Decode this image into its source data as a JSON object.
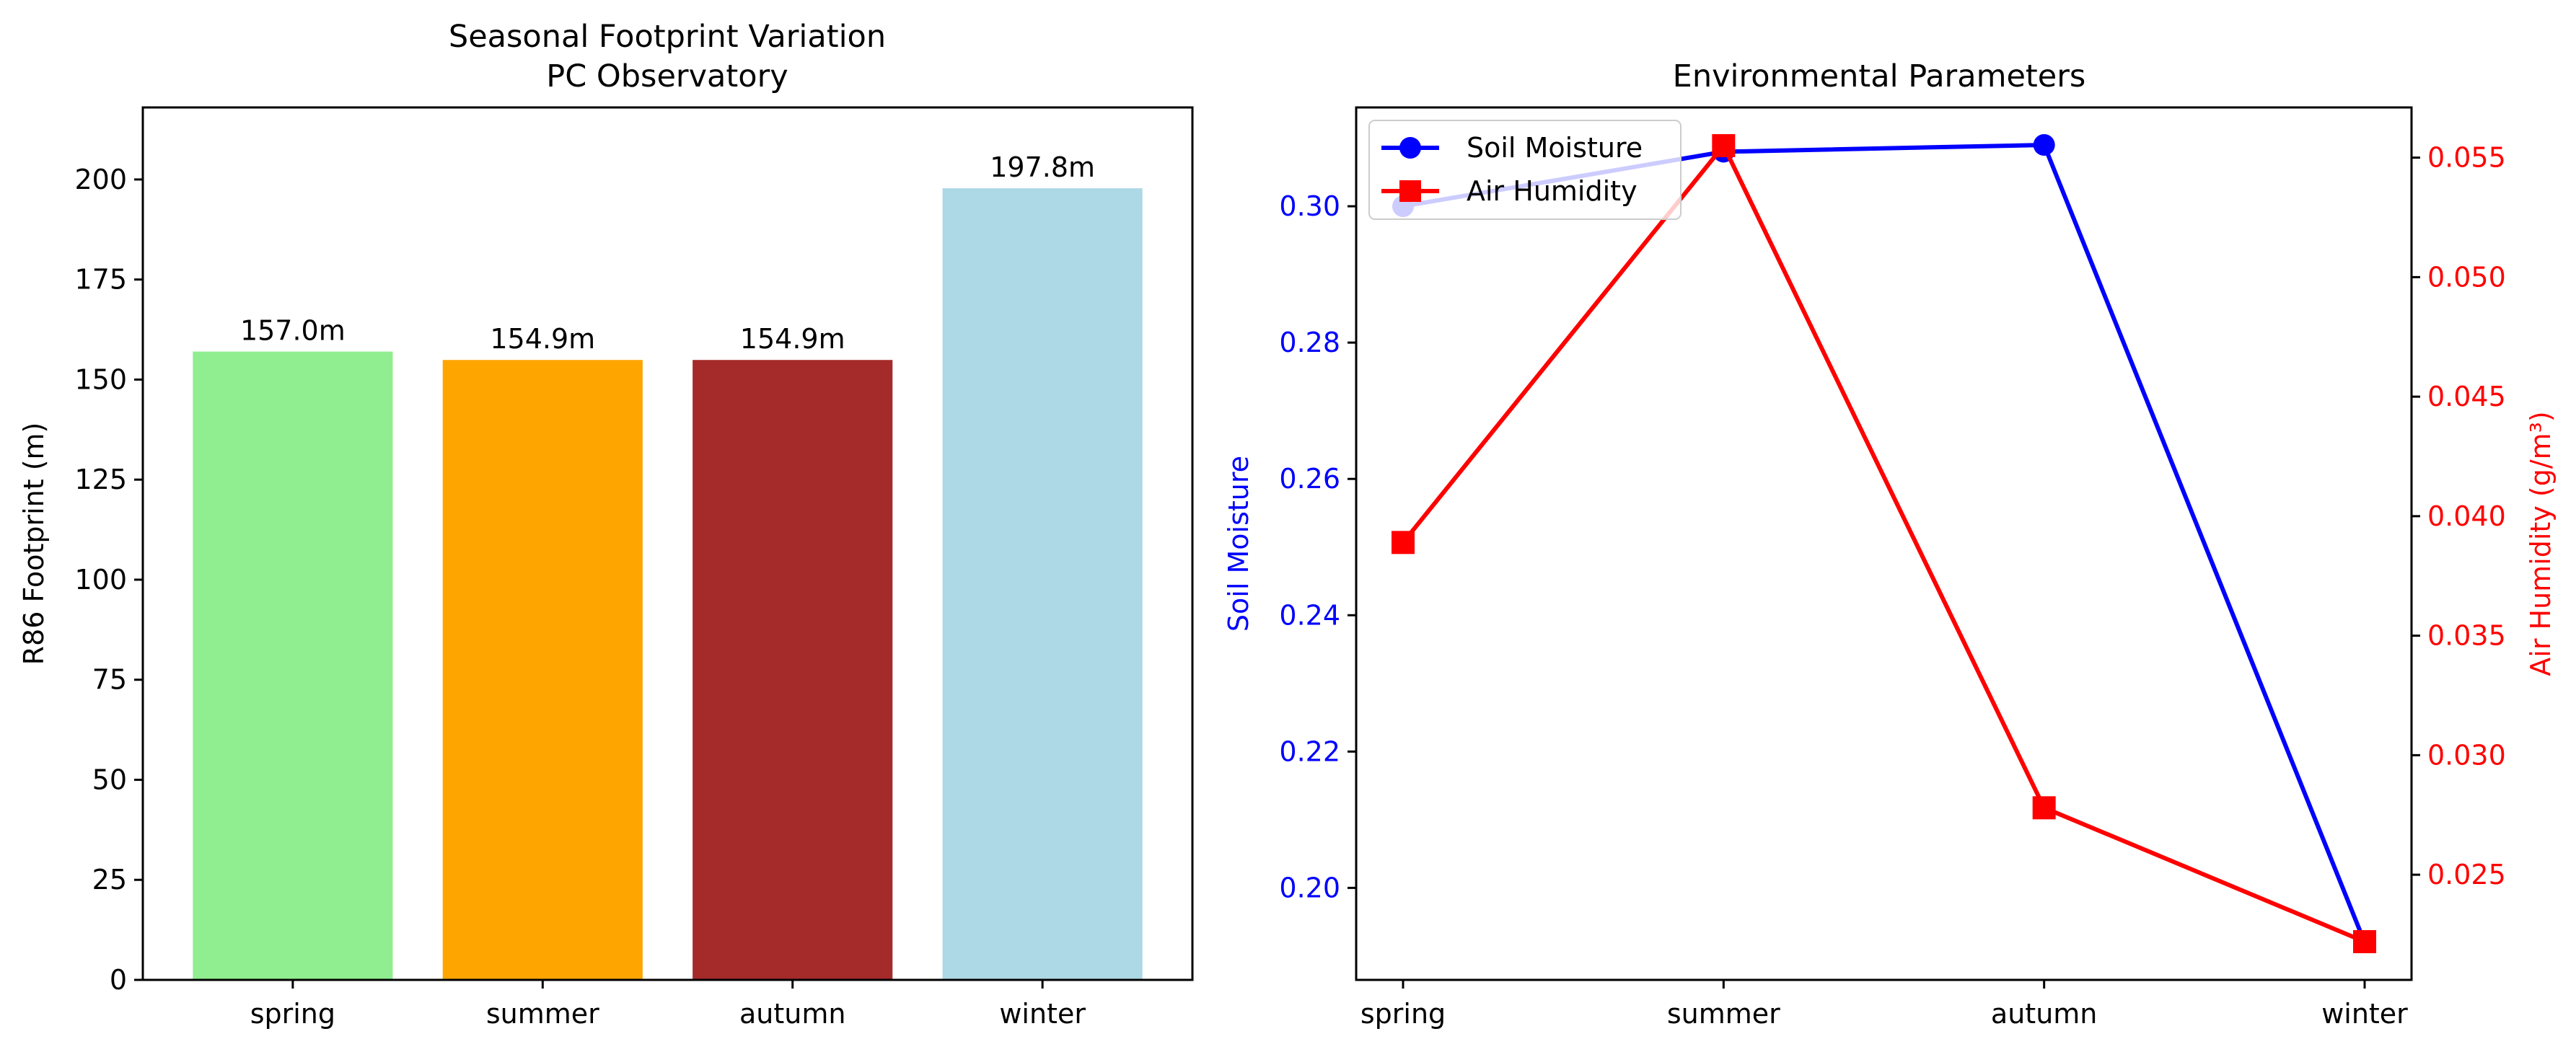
{
  "chart_data": [
    {
      "type": "bar",
      "title_lines": [
        "Seasonal Footprint Variation",
        "PC Observatory"
      ],
      "categories": [
        "spring",
        "summer",
        "autumn",
        "winter"
      ],
      "values": [
        157.0,
        154.9,
        154.9,
        197.8
      ],
      "value_labels": [
        "157.0m",
        "154.9m",
        "154.9m",
        "197.8m"
      ],
      "colors": [
        "#90ee90",
        "#ffa500",
        "#a52a2a",
        "#add8e6"
      ],
      "ylabel": "R86 Footprint (m)",
      "ylim": [
        0,
        218
      ],
      "yticks": [
        0,
        25,
        50,
        75,
        100,
        125,
        150,
        175,
        200
      ],
      "ytick_labels": [
        "0",
        "25",
        "50",
        "75",
        "100",
        "125",
        "150",
        "175",
        "200"
      ],
      "grid": false
    },
    {
      "type": "line",
      "title": "Environmental Parameters",
      "categories": [
        "spring",
        "summer",
        "autumn",
        "winter"
      ],
      "series": [
        {
          "name": "Soil Moisture",
          "axis": "left",
          "color": "#0000ff",
          "marker": "circle",
          "values": [
            0.3,
            0.308,
            0.309,
            0.192
          ]
        },
        {
          "name": "Air Humidity",
          "axis": "right",
          "color": "#ff0000",
          "marker": "square",
          "values": [
            0.0389,
            0.0555,
            0.0278,
            0.0222
          ]
        }
      ],
      "ylabel_left": "Soil Moisture",
      "ylabel_right": "Air Humidity (g/m³)",
      "ylim_left": [
        0.1865,
        0.3145
      ],
      "ylim_right": [
        0.0206,
        0.0571
      ],
      "yticks_left": [
        0.2,
        0.22,
        0.24,
        0.26,
        0.28,
        0.3
      ],
      "ytick_labels_left": [
        "0.20",
        "0.22",
        "0.24",
        "0.26",
        "0.28",
        "0.30"
      ],
      "yticks_right": [
        0.025,
        0.03,
        0.035,
        0.04,
        0.045,
        0.05,
        0.055
      ],
      "ytick_labels_right": [
        "0.025",
        "0.030",
        "0.035",
        "0.040",
        "0.045",
        "0.050",
        "0.055"
      ],
      "legend_position": "upper-left",
      "grid": false
    }
  ]
}
